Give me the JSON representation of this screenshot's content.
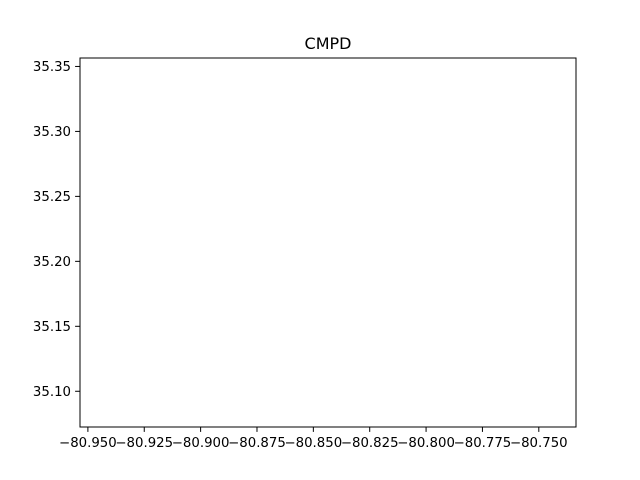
{
  "chart_data": {
    "type": "scatter",
    "title": "CMPD",
    "xlabel": "",
    "ylabel": "",
    "xlim": [
      -80.9535,
      -80.7335
    ],
    "ylim": [
      35.0725,
      35.3565
    ],
    "xticks": [
      -80.95,
      -80.925,
      -80.9,
      -80.875,
      -80.85,
      -80.825,
      -80.8,
      -80.775,
      -80.75
    ],
    "xtick_labels": [
      "−80.950",
      "−80.925",
      "−80.900",
      "−80.875",
      "−80.850",
      "−80.825",
      "−80.800",
      "−80.775",
      "−80.750"
    ],
    "yticks": [
      35.1,
      35.15,
      35.2,
      35.25,
      35.3,
      35.35
    ],
    "ytick_labels": [
      "35.10",
      "35.15",
      "35.20",
      "35.25",
      "35.30",
      "35.35"
    ],
    "series": [],
    "grid": false,
    "legend": "none"
  }
}
